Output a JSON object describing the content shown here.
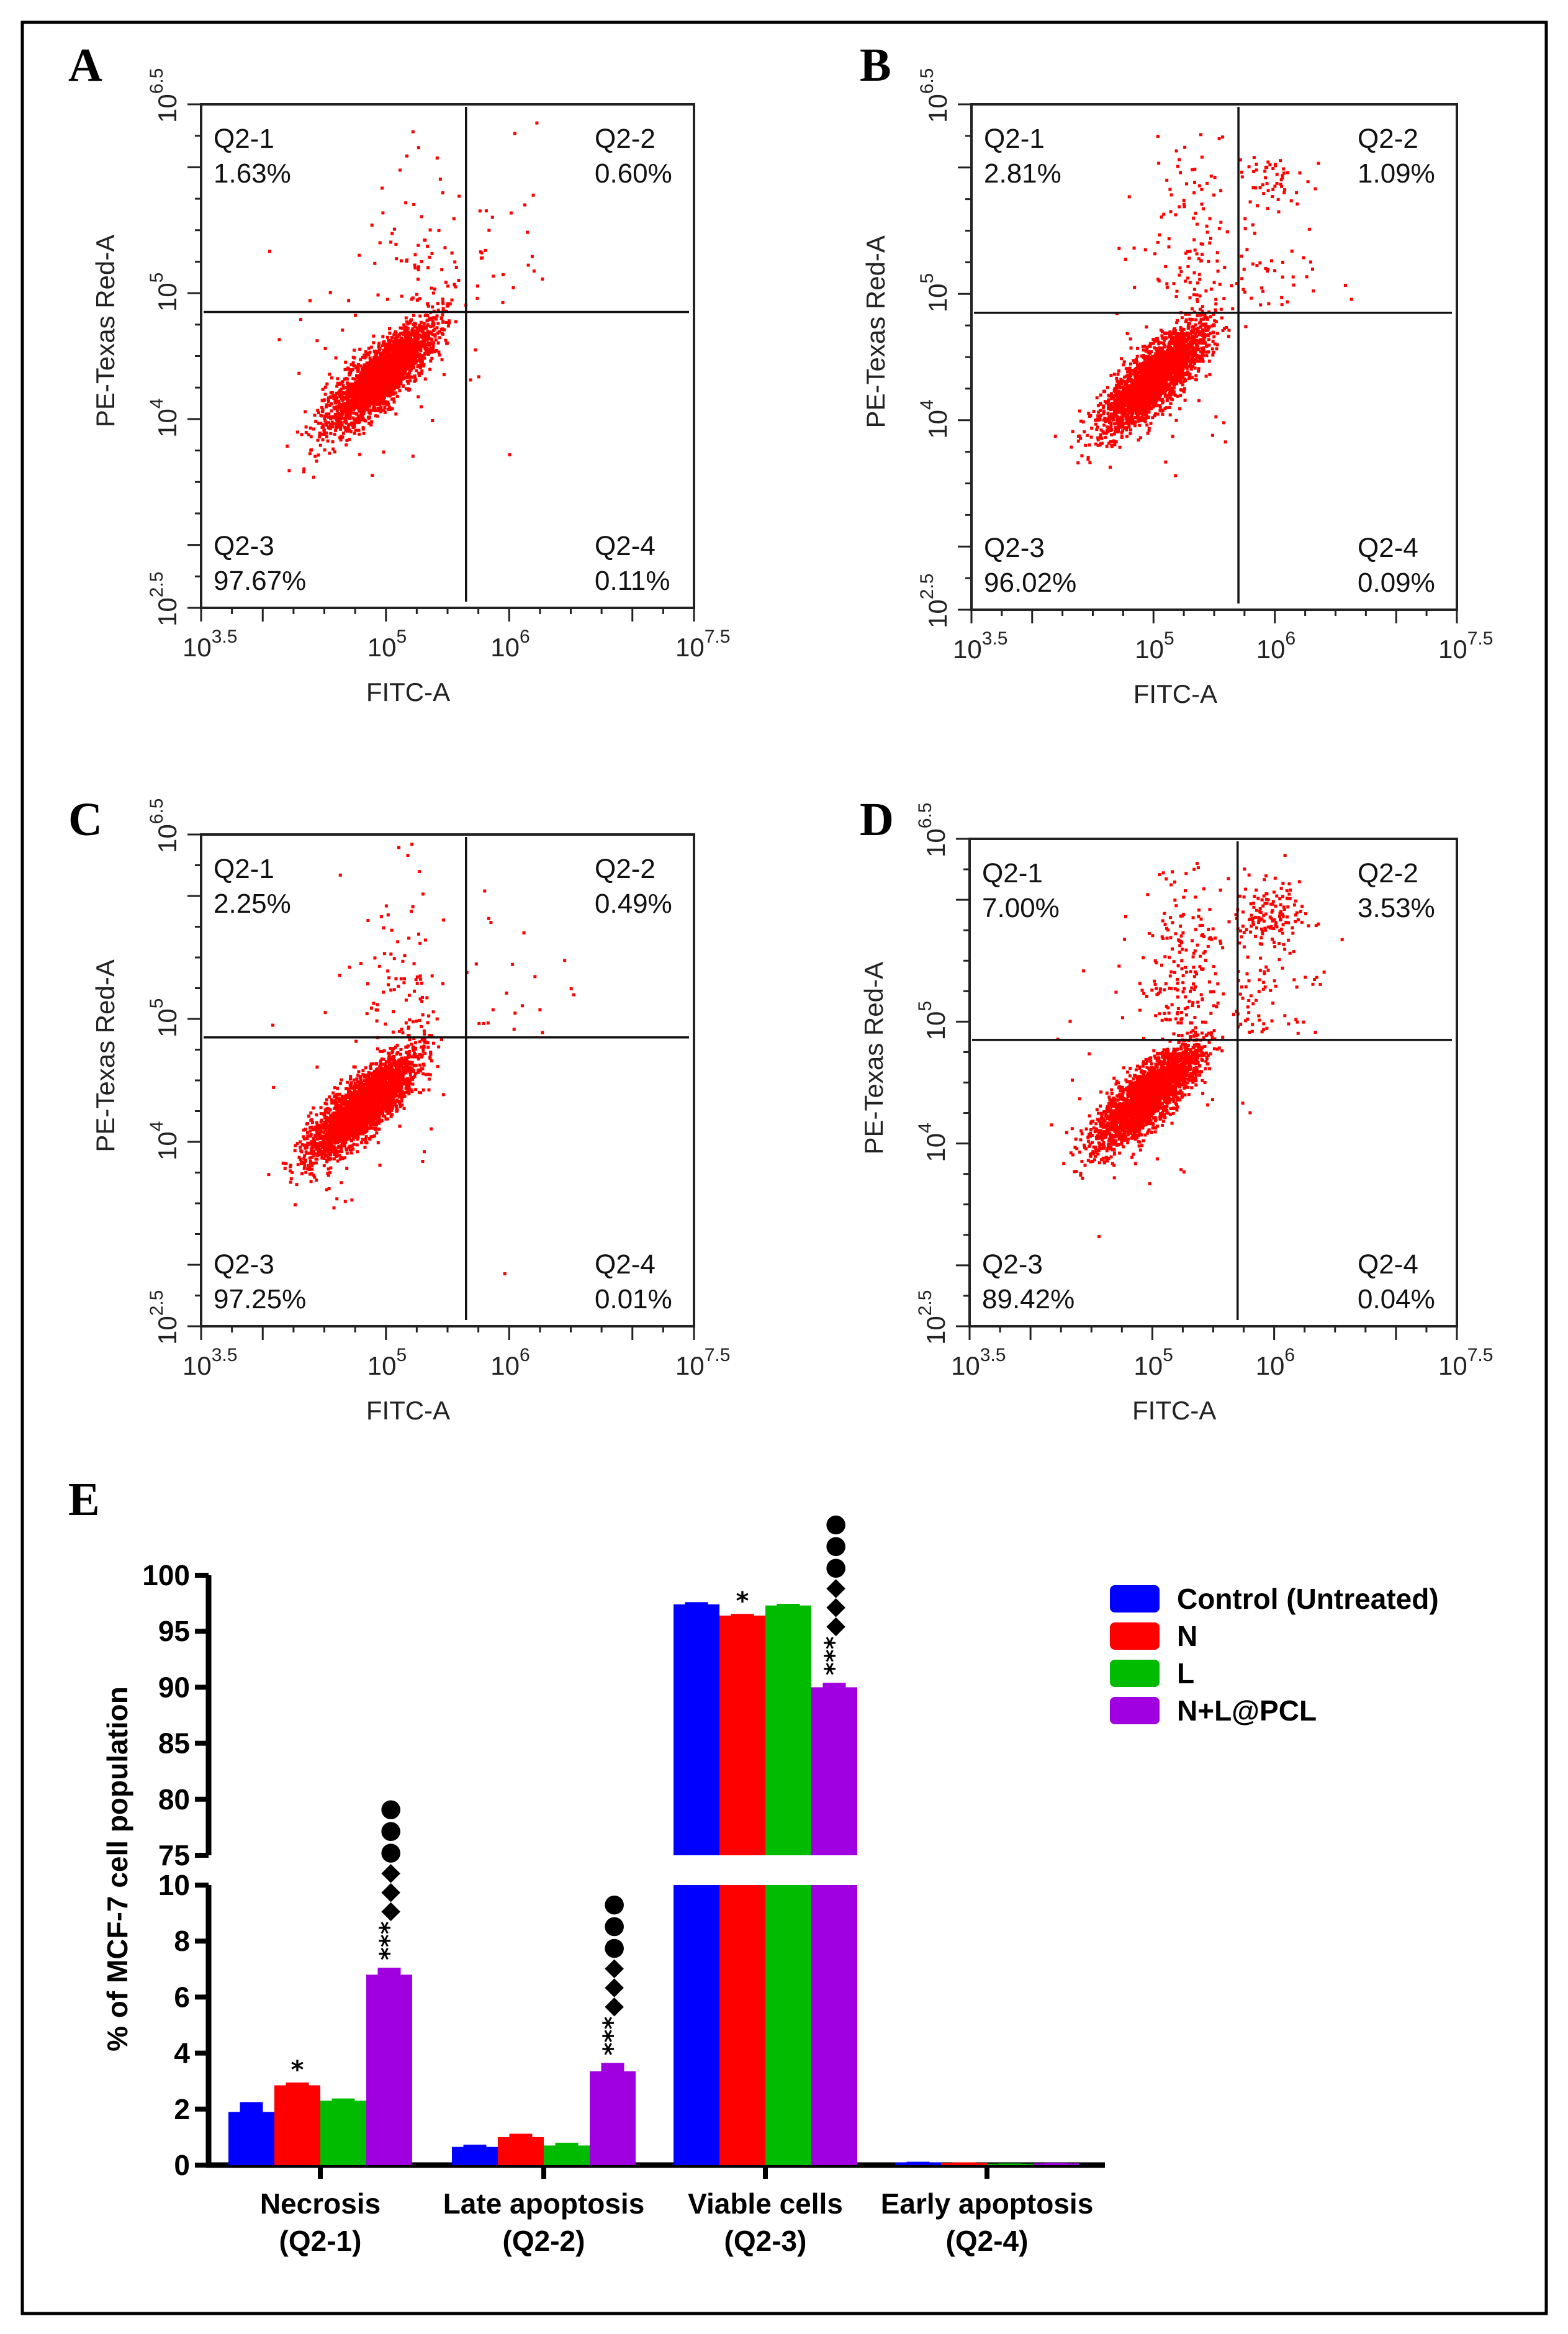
{
  "chart_data": [
    {
      "type": "scatter",
      "panel": "A",
      "xlabel": "FITC-A",
      "ylabel": "PE-Texas Red-A",
      "xlim_log10": [
        3.5,
        7.5
      ],
      "ylim_log10": [
        2.5,
        6.5
      ],
      "xticks": [
        {
          "base": "10",
          "exp": "3.5"
        },
        {
          "base": "10",
          "exp": "5"
        },
        {
          "base": "10",
          "exp": "6"
        },
        {
          "base": "10",
          "exp": "7.5"
        }
      ],
      "yticks": [
        {
          "base": "10",
          "exp": "2.5"
        },
        {
          "base": "10",
          "exp": "4"
        },
        {
          "base": "10",
          "exp": "5"
        },
        {
          "base": "10",
          "exp": "6.5"
        }
      ],
      "gate_log10": {
        "x": 5.65,
        "y": 4.85
      },
      "quadrants": [
        {
          "name": "Q2-1",
          "value": "1.63%"
        },
        {
          "name": "Q2-2",
          "value": "0.60%"
        },
        {
          "name": "Q2-3",
          "value": "97.67%"
        },
        {
          "name": "Q2-4",
          "value": "0.11%"
        }
      ]
    },
    {
      "type": "scatter",
      "panel": "B",
      "xlabel": "FITC-A",
      "ylabel": "PE-Texas Red-A",
      "xlim_log10": [
        3.5,
        7.5
      ],
      "ylim_log10": [
        2.5,
        6.5
      ],
      "xticks": [
        {
          "base": "10",
          "exp": "3.5"
        },
        {
          "base": "10",
          "exp": "5"
        },
        {
          "base": "10",
          "exp": "6"
        },
        {
          "base": "10",
          "exp": "7.5"
        }
      ],
      "yticks": [
        {
          "base": "10",
          "exp": "2.5"
        },
        {
          "base": "10",
          "exp": "4"
        },
        {
          "base": "10",
          "exp": "5"
        },
        {
          "base": "10",
          "exp": "6.5"
        }
      ],
      "gate_log10": {
        "x": 5.7,
        "y": 4.85
      },
      "quadrants": [
        {
          "name": "Q2-1",
          "value": "2.81%"
        },
        {
          "name": "Q2-2",
          "value": "1.09%"
        },
        {
          "name": "Q2-3",
          "value": "96.02%"
        },
        {
          "name": "Q2-4",
          "value": "0.09%"
        }
      ]
    },
    {
      "type": "scatter",
      "panel": "C",
      "xlabel": "FITC-A",
      "ylabel": "PE-Texas Red-A",
      "xlim_log10": [
        3.5,
        7.5
      ],
      "ylim_log10": [
        2.5,
        6.5
      ],
      "xticks": [
        {
          "base": "10",
          "exp": "3.5"
        },
        {
          "base": "10",
          "exp": "5"
        },
        {
          "base": "10",
          "exp": "6"
        },
        {
          "base": "10",
          "exp": "7.5"
        }
      ],
      "yticks": [
        {
          "base": "10",
          "exp": "2.5"
        },
        {
          "base": "10",
          "exp": "4"
        },
        {
          "base": "10",
          "exp": "5"
        },
        {
          "base": "10",
          "exp": "6.5"
        }
      ],
      "gate_log10": {
        "x": 5.65,
        "y": 4.85
      },
      "quadrants": [
        {
          "name": "Q2-1",
          "value": "2.25%"
        },
        {
          "name": "Q2-2",
          "value": "0.49%"
        },
        {
          "name": "Q2-3",
          "value": "97.25%"
        },
        {
          "name": "Q2-4",
          "value": "0.01%"
        }
      ]
    },
    {
      "type": "scatter",
      "panel": "D",
      "xlabel": "FITC-A",
      "ylabel": "PE-Texas Red-A",
      "xlim_log10": [
        3.5,
        7.5
      ],
      "ylim_log10": [
        2.5,
        6.5
      ],
      "xticks": [
        {
          "base": "10",
          "exp": "3.5"
        },
        {
          "base": "10",
          "exp": "5"
        },
        {
          "base": "10",
          "exp": "6"
        },
        {
          "base": "10",
          "exp": "7.5"
        }
      ],
      "yticks": [
        {
          "base": "10",
          "exp": "2.5"
        },
        {
          "base": "10",
          "exp": "4"
        },
        {
          "base": "10",
          "exp": "5"
        },
        {
          "base": "10",
          "exp": "6.5"
        }
      ],
      "gate_log10": {
        "x": 5.7,
        "y": 4.85
      },
      "quadrants": [
        {
          "name": "Q2-1",
          "value": "7.00%"
        },
        {
          "name": "Q2-2",
          "value": "3.53%"
        },
        {
          "name": "Q2-3",
          "value": "89.42%"
        },
        {
          "name": "Q2-4",
          "value": "0.04%"
        }
      ]
    },
    {
      "type": "bar",
      "panel": "E",
      "ylabel": "% of MCF-7 cell population",
      "ylim_broken": [
        [
          0,
          10
        ],
        [
          75,
          100
        ]
      ],
      "yticks_lower": [
        "0",
        "2",
        "4",
        "6",
        "8",
        "10"
      ],
      "yticks_upper": [
        "75",
        "80",
        "85",
        "90",
        "95",
        "100"
      ],
      "categories": [
        {
          "line1": "Necrosis",
          "line2": "(Q2-1)"
        },
        {
          "line1": "Late apoptosis",
          "line2": "(Q2-2)"
        },
        {
          "line1": "Viable cells",
          "line2": "(Q2-3)"
        },
        {
          "line1": "Early apoptosis",
          "line2": "(Q2-4)"
        }
      ],
      "series": [
        {
          "name": "Control (Untreated)",
          "color": "#0000ff",
          "values": [
            1.9,
            0.65,
            97.4,
            0.1
          ],
          "errors": [
            0.35,
            0.08,
            0.2,
            0.02
          ]
        },
        {
          "name": "N",
          "color": "#ff0000",
          "values": [
            2.85,
            1.0,
            96.4,
            0.08
          ],
          "errors": [
            0.1,
            0.12,
            0.15,
            0.02
          ]
        },
        {
          "name": "L",
          "color": "#00bb00",
          "values": [
            2.3,
            0.7,
            97.3,
            0.05
          ],
          "errors": [
            0.08,
            0.1,
            0.15,
            0.01
          ]
        },
        {
          "name": "N+L@PCL",
          "color": "#a000e0",
          "values": [
            6.8,
            3.35,
            90.0,
            0.06
          ],
          "errors": [
            0.25,
            0.3,
            0.4,
            0.02
          ]
        }
      ],
      "annotations": [
        {
          "category": 0,
          "series": 1,
          "stars": "*",
          "diamonds": "",
          "dots": ""
        },
        {
          "category": 0,
          "series": 3,
          "stars": "***",
          "diamonds": "◆◆◆",
          "dots": "●●●"
        },
        {
          "category": 1,
          "series": 3,
          "stars": "***",
          "diamonds": "◆◆◆",
          "dots": "●●●"
        },
        {
          "category": 2,
          "series": 1,
          "stars": "*",
          "diamonds": "",
          "dots": ""
        },
        {
          "category": 2,
          "series": 3,
          "stars": "***",
          "diamonds": "◆◆◆",
          "dots": "●●●"
        }
      ],
      "legend_position": "top-right"
    }
  ]
}
